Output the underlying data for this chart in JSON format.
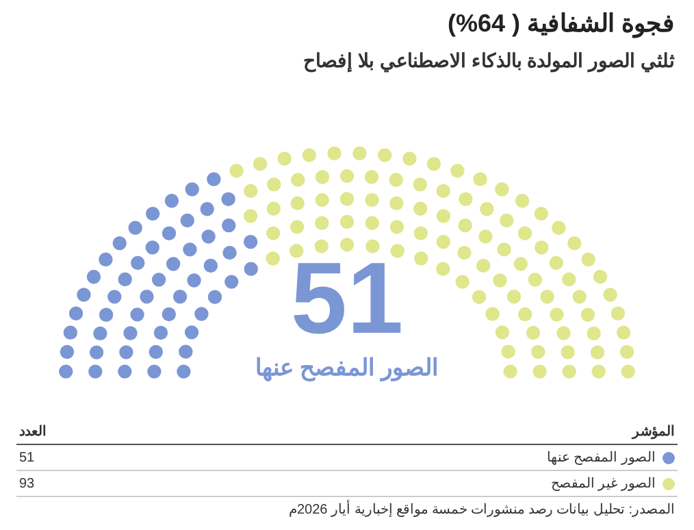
{
  "chart_data": {
    "type": "other",
    "title": "فجوة الشفافية ( 64%)",
    "subtitle": "ثلثي الصور المولدة بالذكاء الاصطناعي بلا إفصاح",
    "categories": [
      "الصور المفصح عنها",
      "الصور غير المفصح"
    ],
    "values": [
      51,
      93
    ],
    "colors": [
      "#7b96d4",
      "#dfe68c"
    ],
    "data_labels": true,
    "legend_title": "المؤشر",
    "annotations": [
      "51",
      "الصور المفصح عنها",
      "العدد",
      "المصدر: تحليل بيانات رصد منشورات خمسة مواقع إخبارية أيار 2026م"
    ]
  }
}
